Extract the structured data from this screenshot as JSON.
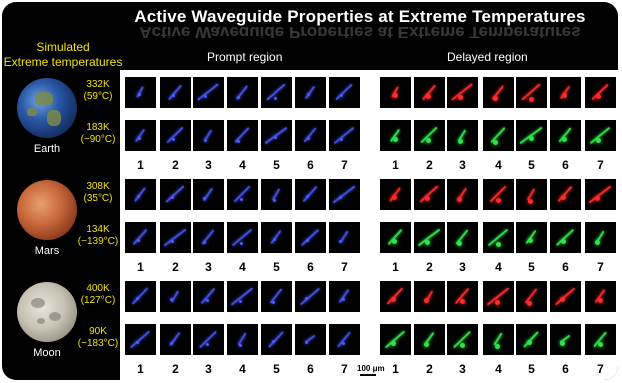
{
  "title": "Active Waveguide Properties at Extreme Temperatures",
  "side_title": {
    "line1": "Simulated",
    "line2": "Extreme temperatures"
  },
  "regions": {
    "prompt": "Prompt region",
    "delayed": "Delayed region"
  },
  "column_numbers": [
    "1",
    "2",
    "3",
    "4",
    "5",
    "6",
    "7"
  ],
  "scale_bar": "100 μm",
  "colors": {
    "prompt": "#4a5cff",
    "delayed_hot": "#ff2a2a",
    "delayed_cold": "#2fe34a",
    "label": "#f2e400"
  },
  "planets": [
    {
      "name": "Earth",
      "icon": "earth-globe",
      "temps": [
        {
          "kelvin": "332K",
          "celsius": "(59°C)"
        },
        {
          "kelvin": "183K",
          "celsius": "(−90°C)"
        }
      ]
    },
    {
      "name": "Mars",
      "icon": "mars-globe",
      "temps": [
        {
          "kelvin": "308K",
          "celsius": "(35°C)"
        },
        {
          "kelvin": "134K",
          "celsius": "(−139°C)"
        }
      ]
    },
    {
      "name": "Moon",
      "icon": "moon-globe",
      "temps": [
        {
          "kelvin": "400K",
          "celsius": "(127°C)"
        },
        {
          "kelvin": "90K",
          "celsius": "(−183°C)"
        }
      ]
    }
  ]
}
